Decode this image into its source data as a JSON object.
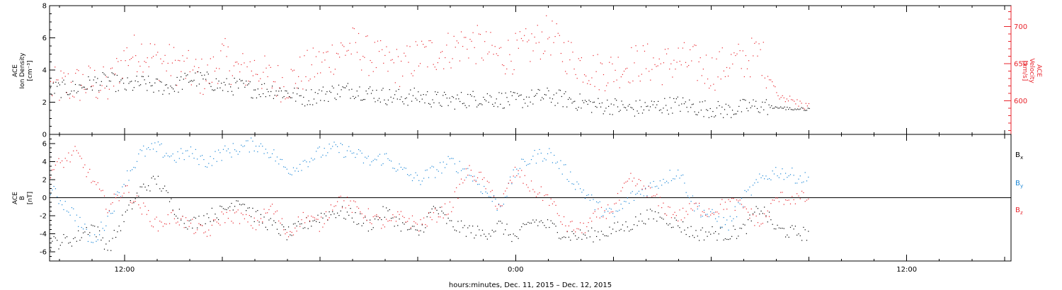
{
  "xlabel": "hours:minutes, Dec. 11, 2015 – Dec. 12, 2015",
  "colors": {
    "black": "#000000",
    "red": "#e8242c",
    "blue": "#1a86d6"
  },
  "chart_data": [
    {
      "type": "scatter",
      "panel": "top",
      "x_ticks": [
        "12:00",
        "0:00",
        "12:00"
      ],
      "x_hours_range": [
        9.7,
        39.2
      ],
      "data_end_hour": 33.0,
      "ylabel": {
        "line1": "ACE",
        "line2": "Ion Density",
        "line3": "[cm⁻³]"
      },
      "ylim": [
        0,
        8
      ],
      "y_ticks": [
        "0",
        "2",
        "4",
        "6",
        "8"
      ],
      "y2label": {
        "line1": "ACE",
        "line2": "Velocity",
        "line3": "[km/s]"
      },
      "y2lim": [
        555,
        728
      ],
      "y2_ticks": [
        "600",
        "650",
        "700"
      ],
      "series": [
        {
          "axis": "left",
          "color": "#000000",
          "points": [
            [
              9.7,
              2.8
            ],
            [
              10.5,
              2.9
            ],
            [
              11.0,
              3.2
            ],
            [
              11.5,
              3.4
            ],
            [
              12.0,
              3.0
            ],
            [
              12.5,
              3.2
            ],
            [
              13.0,
              3.0
            ],
            [
              13.5,
              3.0
            ],
            [
              14.0,
              3.5
            ],
            [
              14.5,
              3.4
            ],
            [
              15.0,
              3.0
            ],
            [
              15.5,
              3.0
            ],
            [
              16.0,
              2.8
            ],
            [
              16.5,
              2.8
            ],
            [
              17.0,
              2.6
            ],
            [
              17.5,
              2.3
            ],
            [
              18.0,
              2.5
            ],
            [
              18.5,
              2.7
            ],
            [
              19.0,
              2.8
            ],
            [
              19.5,
              2.6
            ],
            [
              20.0,
              2.4
            ],
            [
              20.5,
              2.3
            ],
            [
              21.0,
              2.4
            ],
            [
              21.5,
              2.2
            ],
            [
              22.0,
              2.1
            ],
            [
              22.5,
              2.2
            ],
            [
              23.0,
              2.3
            ],
            [
              23.5,
              2.2
            ],
            [
              24.0,
              2.1
            ],
            [
              24.5,
              2.3
            ],
            [
              25.0,
              2.4
            ],
            [
              25.5,
              2.2
            ],
            [
              26.0,
              2.0
            ],
            [
              26.5,
              1.8
            ],
            [
              27.0,
              1.8
            ],
            [
              27.5,
              1.6
            ],
            [
              28.0,
              1.7
            ],
            [
              28.5,
              1.8
            ],
            [
              29.0,
              1.9
            ],
            [
              29.5,
              1.7
            ],
            [
              30.0,
              1.6
            ],
            [
              30.5,
              1.5
            ],
            [
              31.0,
              1.7
            ],
            [
              31.5,
              1.8
            ],
            [
              32.0,
              1.7
            ],
            [
              32.5,
              1.6
            ],
            [
              33.0,
              1.6
            ]
          ]
        },
        {
          "axis": "right",
          "color": "#e8242c",
          "points": [
            [
              9.7,
              618
            ],
            [
              10.5,
              622
            ],
            [
              11.0,
              625
            ],
            [
              11.5,
              618
            ],
            [
              12.0,
              660
            ],
            [
              12.5,
              668
            ],
            [
              13.0,
              655
            ],
            [
              13.5,
              650
            ],
            [
              14.0,
              640
            ],
            [
              14.5,
              630
            ],
            [
              15.0,
              660
            ],
            [
              15.5,
              640
            ],
            [
              16.0,
              645
            ],
            [
              16.5,
              628
            ],
            [
              17.0,
              625
            ],
            [
              17.5,
              640
            ],
            [
              18.0,
              650
            ],
            [
              18.5,
              665
            ],
            [
              19.0,
              675
            ],
            [
              19.5,
              660
            ],
            [
              20.0,
              652
            ],
            [
              20.5,
              645
            ],
            [
              21.0,
              660
            ],
            [
              21.5,
              665
            ],
            [
              22.0,
              670
            ],
            [
              22.5,
              680
            ],
            [
              23.0,
              672
            ],
            [
              23.5,
              660
            ],
            [
              24.0,
              665
            ],
            [
              24.5,
              675
            ],
            [
              25.0,
              690
            ],
            [
              25.5,
              665
            ],
            [
              26.0,
              650
            ],
            [
              26.5,
              640
            ],
            [
              27.0,
              642
            ],
            [
              27.5,
              650
            ],
            [
              28.0,
              652
            ],
            [
              28.5,
              648
            ],
            [
              29.0,
              655
            ],
            [
              29.5,
              650
            ],
            [
              30.0,
              640
            ],
            [
              30.5,
              650
            ],
            [
              31.0,
              655
            ],
            [
              31.5,
              665
            ],
            [
              32.0,
              610
            ],
            [
              32.5,
              600
            ],
            [
              33.0,
              592
            ]
          ]
        }
      ]
    },
    {
      "type": "scatter",
      "panel": "bottom",
      "x_ticks": [
        "12:00",
        "0:00",
        "12:00"
      ],
      "x_hours_range": [
        9.7,
        39.2
      ],
      "data_end_hour": 33.0,
      "ylabel": {
        "line1": "ACE",
        "line2": "B",
        "line3": "[nT]"
      },
      "ylim": [
        -7,
        7
      ],
      "y_ticks": [
        "-6",
        "-4",
        "-2",
        "0",
        "2",
        "4",
        "6"
      ],
      "zero_line": true,
      "legend": [
        {
          "label": "B",
          "sub": "x",
          "color": "#000000"
        },
        {
          "label": "B",
          "sub": "y",
          "color": "#1a86d6"
        },
        {
          "label": "B",
          "sub": "z",
          "color": "#e8242c"
        }
      ],
      "series": [
        {
          "name": "Bx",
          "color": "#000000",
          "points": [
            [
              9.7,
              -5
            ],
            [
              10.5,
              -4.5
            ],
            [
              11.0,
              -3
            ],
            [
              11.5,
              -5.5
            ],
            [
              12.0,
              -2
            ],
            [
              12.5,
              1
            ],
            [
              13.0,
              2
            ],
            [
              13.5,
              -1
            ],
            [
              14.0,
              -3
            ],
            [
              14.5,
              -2
            ],
            [
              15.0,
              -1.5
            ],
            [
              15.5,
              0
            ],
            [
              16.0,
              -2
            ],
            [
              16.5,
              -3
            ],
            [
              17.0,
              -4
            ],
            [
              17.5,
              -3
            ],
            [
              18.0,
              -2
            ],
            [
              18.5,
              -1.5
            ],
            [
              19.0,
              -2
            ],
            [
              19.5,
              -3
            ],
            [
              20.0,
              -1.5
            ],
            [
              20.5,
              -3
            ],
            [
              21.0,
              -4
            ],
            [
              21.5,
              -1
            ],
            [
              22.0,
              -3
            ],
            [
              22.5,
              -3.5
            ],
            [
              23.0,
              -4
            ],
            [
              23.5,
              -3
            ],
            [
              24.0,
              -4.5
            ],
            [
              24.5,
              -2.5
            ],
            [
              25.0,
              -3
            ],
            [
              25.5,
              -4
            ],
            [
              26.0,
              -4.2
            ],
            [
              26.5,
              -4
            ],
            [
              27.0,
              -3.5
            ],
            [
              27.5,
              -3
            ],
            [
              28.0,
              -2
            ],
            [
              28.5,
              -2
            ],
            [
              29.0,
              -3
            ],
            [
              29.5,
              -4
            ],
            [
              30.0,
              -3.8
            ],
            [
              30.5,
              -4
            ],
            [
              31.0,
              -3.5
            ],
            [
              31.5,
              -1
            ],
            [
              32.0,
              -3.5
            ],
            [
              32.5,
              -3.8
            ],
            [
              33.0,
              -4
            ]
          ]
        },
        {
          "name": "By",
          "color": "#1a86d6",
          "points": [
            [
              9.7,
              1
            ],
            [
              10.5,
              -2
            ],
            [
              11.0,
              -5
            ],
            [
              11.5,
              -2
            ],
            [
              12.0,
              2
            ],
            [
              12.5,
              5
            ],
            [
              13.0,
              5.5
            ],
            [
              13.5,
              4.5
            ],
            [
              14.0,
              5
            ],
            [
              14.5,
              4
            ],
            [
              15.0,
              5
            ],
            [
              15.5,
              5.5
            ],
            [
              16.0,
              6
            ],
            [
              16.5,
              5
            ],
            [
              17.0,
              3
            ],
            [
              17.5,
              4
            ],
            [
              18.0,
              5
            ],
            [
              18.5,
              5.5
            ],
            [
              19.0,
              5
            ],
            [
              19.5,
              4
            ],
            [
              20.0,
              4.5
            ],
            [
              20.5,
              3
            ],
            [
              21.0,
              2
            ],
            [
              21.5,
              3
            ],
            [
              22.0,
              4
            ],
            [
              22.5,
              3
            ],
            [
              23.0,
              1
            ],
            [
              23.5,
              -1
            ],
            [
              24.0,
              3
            ],
            [
              24.5,
              4.5
            ],
            [
              25.0,
              5
            ],
            [
              25.5,
              3
            ],
            [
              26.0,
              1
            ],
            [
              26.5,
              -1
            ],
            [
              27.0,
              -2
            ],
            [
              27.5,
              0
            ],
            [
              28.0,
              1
            ],
            [
              28.5,
              2
            ],
            [
              29.0,
              3
            ],
            [
              29.5,
              -1
            ],
            [
              30.0,
              -2
            ],
            [
              30.5,
              -3
            ],
            [
              31.0,
              0
            ],
            [
              31.5,
              2
            ],
            [
              32.0,
              3
            ],
            [
              32.5,
              2.5
            ],
            [
              33.0,
              2
            ]
          ]
        },
        {
          "name": "Bz",
          "color": "#e8242c",
          "points": [
            [
              9.7,
              3
            ],
            [
              10.5,
              5
            ],
            [
              11.0,
              2
            ],
            [
              11.5,
              -1
            ],
            [
              12.0,
              1
            ],
            [
              12.5,
              -1
            ],
            [
              13.0,
              -3
            ],
            [
              13.5,
              -2
            ],
            [
              14.0,
              -3
            ],
            [
              14.5,
              -4
            ],
            [
              15.0,
              -2
            ],
            [
              15.5,
              -2
            ],
            [
              16.0,
              -3
            ],
            [
              16.5,
              -1
            ],
            [
              17.0,
              -4
            ],
            [
              17.5,
              -2
            ],
            [
              18.0,
              -3
            ],
            [
              18.5,
              0
            ],
            [
              19.0,
              -1
            ],
            [
              19.5,
              -2
            ],
            [
              20.0,
              -3
            ],
            [
              20.5,
              -2
            ],
            [
              21.0,
              -3
            ],
            [
              21.5,
              -2
            ],
            [
              22.0,
              -1
            ],
            [
              22.5,
              3
            ],
            [
              23.0,
              2
            ],
            [
              23.5,
              -1
            ],
            [
              24.0,
              3
            ],
            [
              24.5,
              1
            ],
            [
              25.0,
              0
            ],
            [
              25.5,
              -3
            ],
            [
              26.0,
              -3.5
            ],
            [
              26.5,
              -2
            ],
            [
              27.0,
              -1
            ],
            [
              27.5,
              2
            ],
            [
              28.0,
              1
            ],
            [
              28.5,
              -1
            ],
            [
              29.0,
              -2
            ],
            [
              29.5,
              -1
            ],
            [
              30.0,
              -1.5
            ],
            [
              30.5,
              -0.5
            ],
            [
              31.0,
              -1
            ],
            [
              31.5,
              -3
            ],
            [
              32.0,
              0
            ],
            [
              32.5,
              0
            ],
            [
              33.0,
              0
            ]
          ]
        }
      ]
    }
  ]
}
